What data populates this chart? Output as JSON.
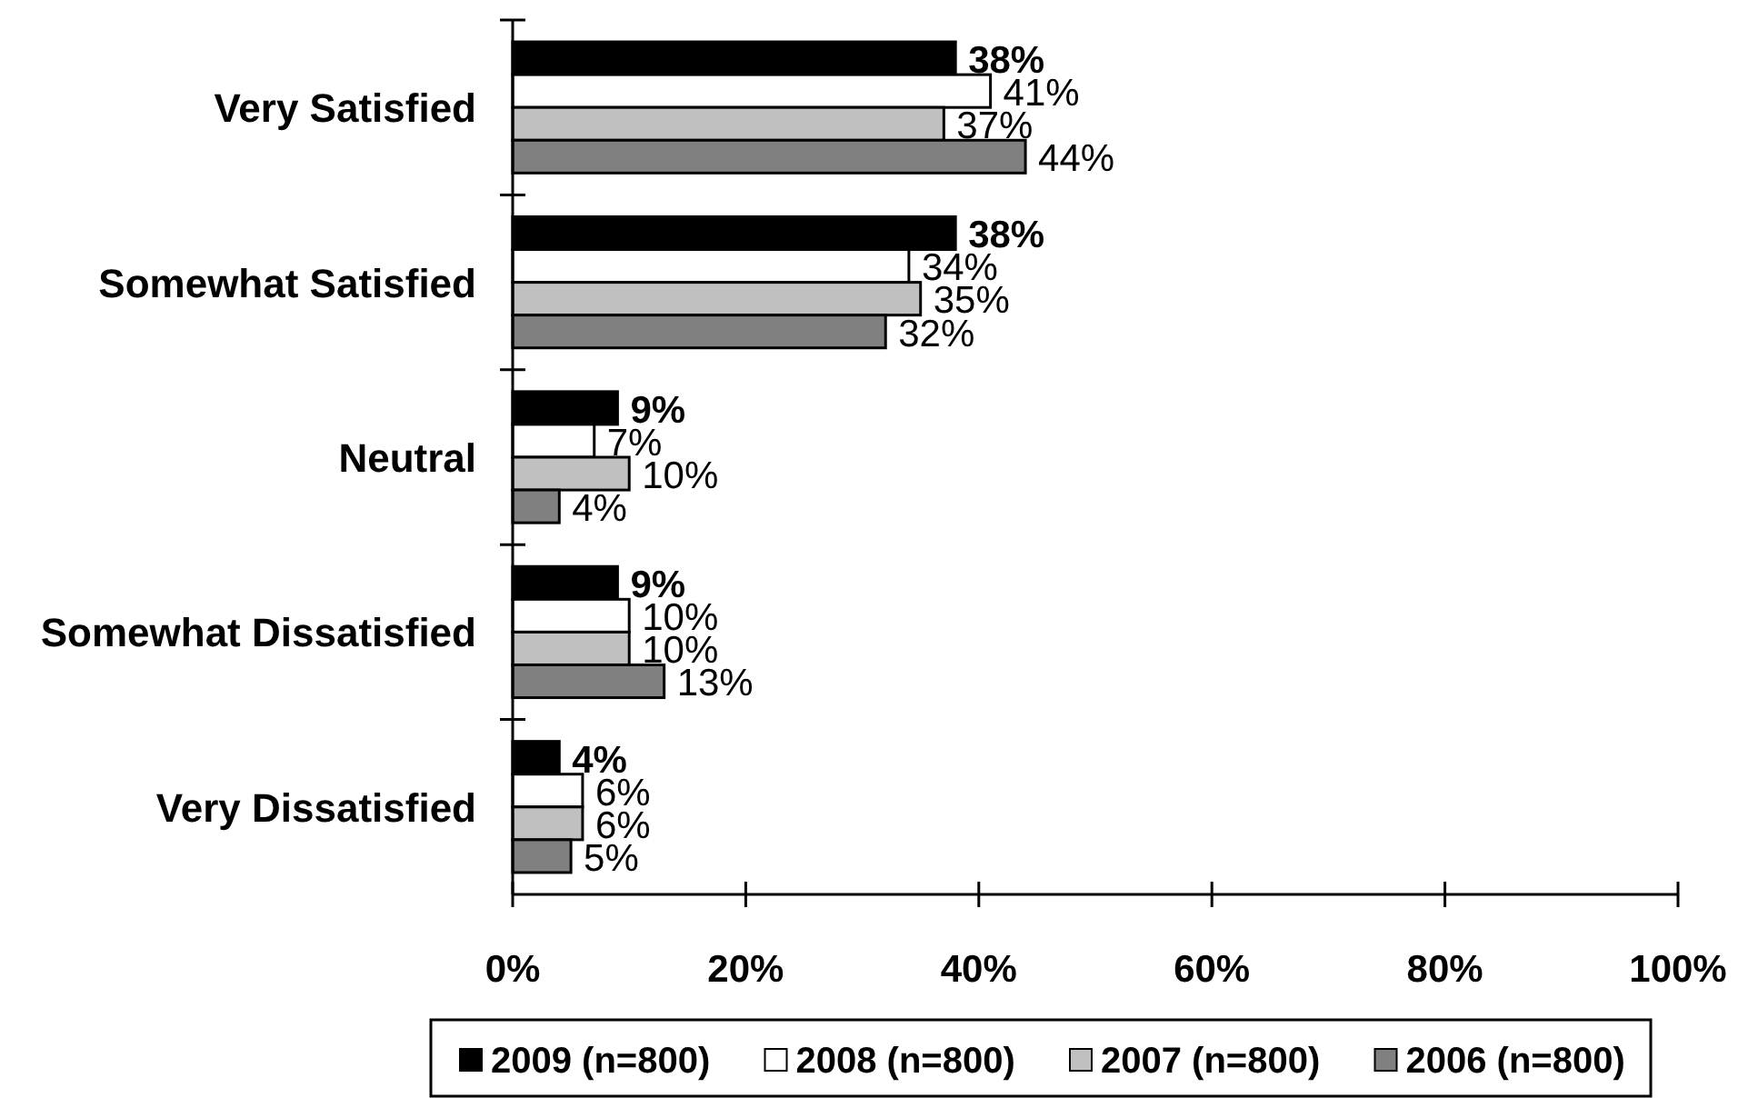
{
  "chart_data": {
    "type": "bar",
    "orientation": "horizontal",
    "categories": [
      "Very Satisfied",
      "Somewhat Satisfied",
      "Neutral",
      "Somewhat Dissatisfied",
      "Very Dissatisfied"
    ],
    "series": [
      {
        "name": "2009 (n=800)",
        "color": "#000000",
        "values": [
          38,
          38,
          9,
          9,
          4
        ],
        "value_labels": [
          "38%",
          "38%",
          "9%",
          "9%",
          "4%"
        ]
      },
      {
        "name": "2008 (n=800)",
        "color": "#ffffff",
        "values": [
          41,
          34,
          7,
          10,
          6
        ],
        "value_labels": [
          "41%",
          "34%",
          "7%",
          "10%",
          "6%"
        ]
      },
      {
        "name": "2007 (n=800)",
        "color": "#c0c0c0",
        "values": [
          37,
          35,
          10,
          10,
          6
        ],
        "value_labels": [
          "37%",
          "35%",
          "10%",
          "10%",
          "6%"
        ]
      },
      {
        "name": "2006 (n=800)",
        "color": "#808080",
        "values": [
          44,
          32,
          4,
          13,
          5
        ],
        "value_labels": [
          "44%",
          "32%",
          "4%",
          "13%",
          "5%"
        ]
      }
    ],
    "xlim": [
      0,
      100
    ],
    "xticks": [
      {
        "value": 0,
        "label": "0%"
      },
      {
        "value": 20,
        "label": "20%"
      },
      {
        "value": 40,
        "label": "40%"
      },
      {
        "value": 60,
        "label": "60%"
      },
      {
        "value": 80,
        "label": "80%"
      },
      {
        "value": 100,
        "label": "100%"
      }
    ],
    "legend": "bottom"
  }
}
